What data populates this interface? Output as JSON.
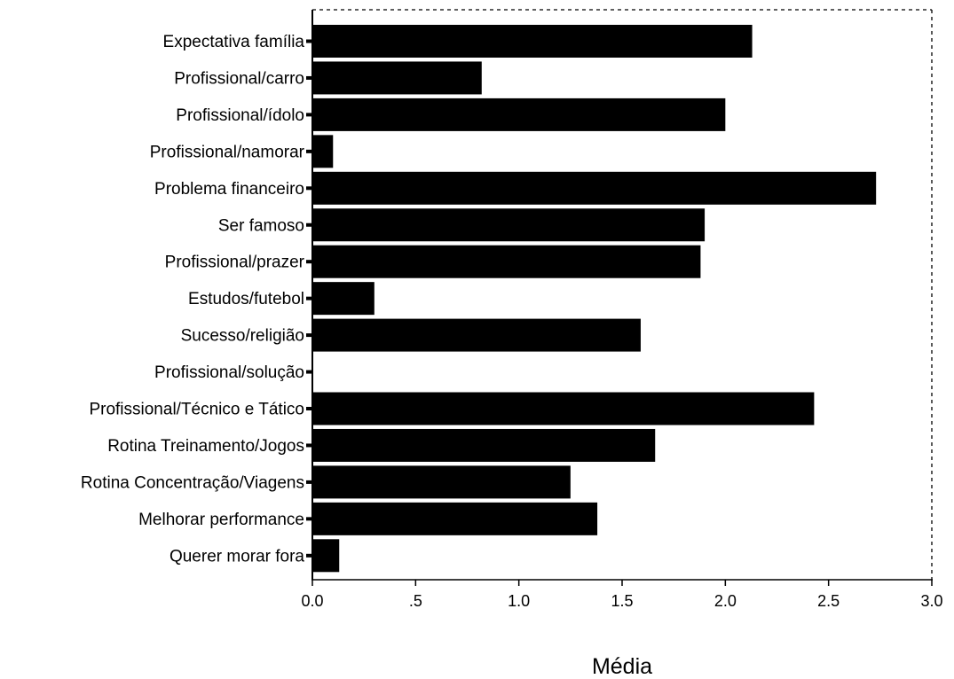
{
  "chart_data": {
    "type": "bar",
    "orientation": "horizontal",
    "categories": [
      "Expectativa família",
      "Profissional/carro",
      "Profissional/ídolo",
      "Profissional/namorar",
      "Problema financeiro",
      "Ser famoso",
      "Profissional/prazer",
      "Estudos/futebol",
      "Sucesso/religião",
      "Profissional/solução",
      "Profissional/Técnico e Tático",
      "Rotina Treinamento/Jogos",
      "Rotina Concentração/Viagens",
      "Melhorar performance",
      "Querer morar fora"
    ],
    "values": [
      2.13,
      0.82,
      2.0,
      0.1,
      2.73,
      1.9,
      1.88,
      0.3,
      1.59,
      0.0,
      2.43,
      1.66,
      1.25,
      1.38,
      0.13
    ],
    "xlabel": "Média",
    "ylabel": "",
    "xlim": [
      0,
      3
    ],
    "xticks": [
      0,
      0.5,
      1,
      1.5,
      2,
      2.5,
      3
    ],
    "xtick_labels": [
      "0.0",
      ".5",
      "1.0",
      "1.5",
      "2.0",
      "2.5",
      "3.0"
    ],
    "grid": false,
    "frame": "dotted top and right border",
    "bar_color": "#000000"
  }
}
